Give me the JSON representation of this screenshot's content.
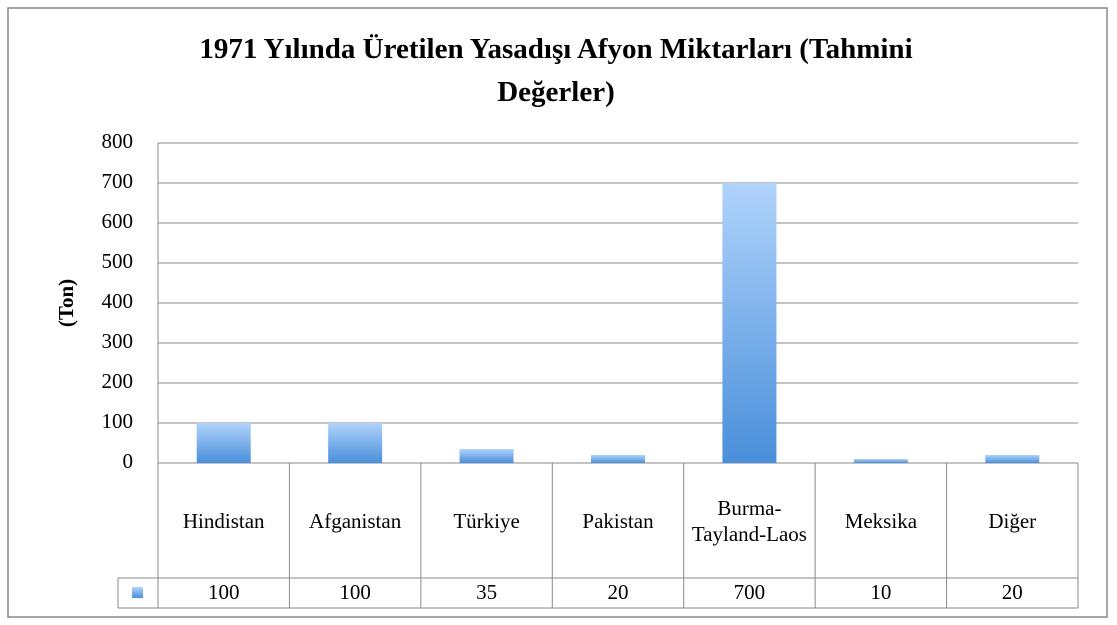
{
  "chart_data": {
    "type": "bar",
    "title": "1971 Yılında Üretilen Yasadışı Afyon Miktarları (Tahmini Değerler)",
    "y_label": "(Ton)",
    "categories": [
      "Hindistan",
      "Afganistan",
      "Türkiye",
      "Pakistan",
      "Burma-Tayland-Laos",
      "Meksika",
      "Diğer"
    ],
    "values": [
      100,
      100,
      35,
      20,
      700,
      10,
      20
    ],
    "color": "#5a9be0",
    "ylim": [
      0,
      800
    ],
    "yticks": [
      0,
      100,
      200,
      300,
      400,
      500,
      600,
      700,
      800
    ],
    "grid": true
  }
}
